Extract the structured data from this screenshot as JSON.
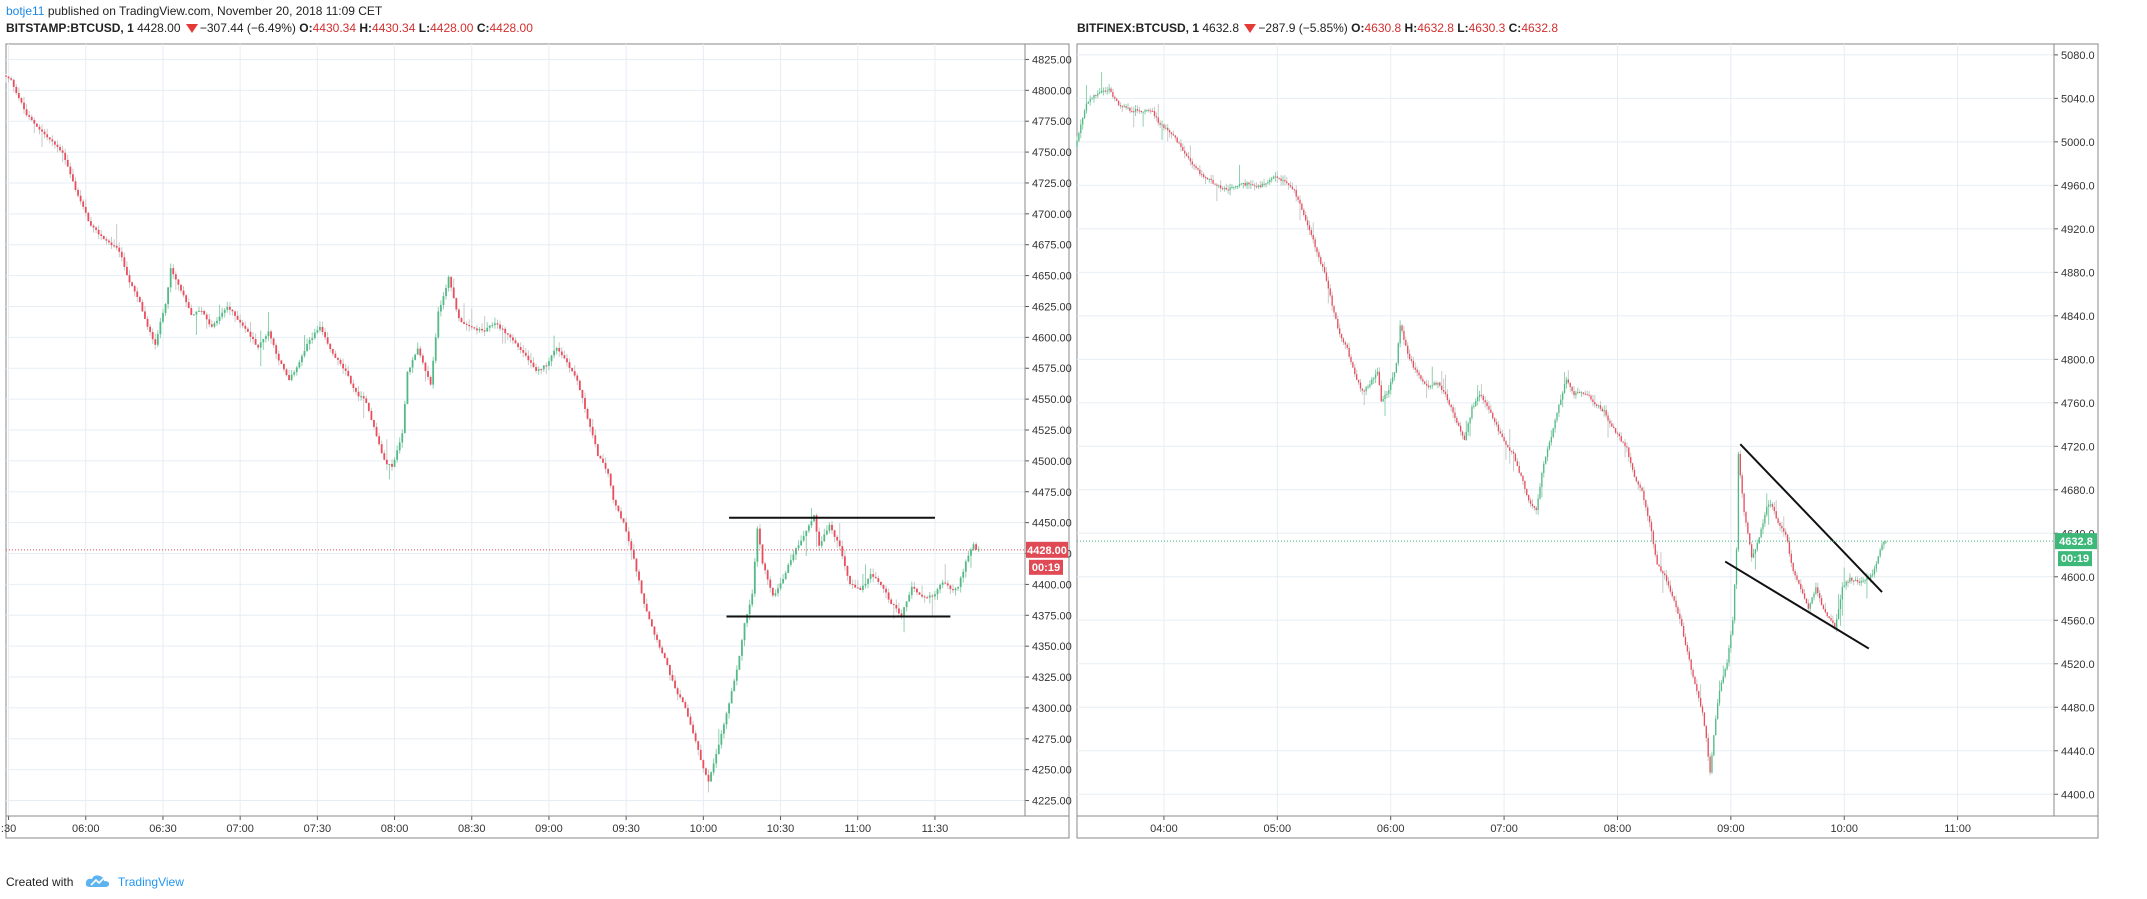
{
  "publish": {
    "author": "botje11",
    "text": "published on TradingView.com, November 20, 2018 11:09 CET"
  },
  "footer": {
    "created_with": "Created with",
    "brand": "TradingView"
  },
  "chart_data": [
    {
      "type": "candlestick",
      "legend": {
        "symbol": "BITSTAMP:BTCUSD, 1",
        "last": "4428.00",
        "change": "−307.44 (−6.49%)",
        "o": "4430.34",
        "h": "4430.34",
        "l": "4428.00",
        "c": "4428.00"
      },
      "ylim": [
        4212.5,
        4837.5
      ],
      "yticks": [
        "4825.00",
        "4800.00",
        "4775.00",
        "4750.00",
        "4725.00",
        "4700.00",
        "4675.00",
        "4650.00",
        "4625.00",
        "4600.00",
        "4575.00",
        "4550.00",
        "4525.00",
        "4500.00",
        "4475.00",
        "4450.00",
        "4425.00",
        "4400.00",
        "4375.00",
        "4350.00",
        "4325.00",
        "4300.00",
        "4275.00",
        "4250.00",
        "4225.00"
      ],
      "xticks": [
        ":30",
        "06:00",
        "06:30",
        "07:00",
        "07:30",
        "08:00",
        "08:30",
        "09:00",
        "09:30",
        "10:00",
        "10:30",
        "11:00",
        "11:30"
      ],
      "x_minutes": [
        -30,
        0,
        30,
        60,
        90,
        120,
        150,
        180,
        210,
        240,
        270,
        300,
        330
      ],
      "xlim_minutes": [
        -31,
        365
      ],
      "last_price": {
        "value": 4428.0,
        "label": "4428.00",
        "countdown": "00:19",
        "color": "#e04a55"
      },
      "path": [
        [
          -31,
          4812
        ],
        [
          -28,
          4808
        ],
        [
          -22,
          4780
        ],
        [
          -14,
          4762
        ],
        [
          -8,
          4750
        ],
        [
          -3,
          4720
        ],
        [
          3,
          4690
        ],
        [
          8,
          4680
        ],
        [
          14,
          4670
        ],
        [
          18,
          4645
        ],
        [
          22,
          4628
        ],
        [
          25,
          4608
        ],
        [
          28,
          4595
        ],
        [
          32,
          4628
        ],
        [
          34,
          4655
        ],
        [
          38,
          4638
        ],
        [
          42,
          4618
        ],
        [
          46,
          4622
        ],
        [
          50,
          4608
        ],
        [
          56,
          4625
        ],
        [
          62,
          4610
        ],
        [
          68,
          4592
        ],
        [
          72,
          4605
        ],
        [
          76,
          4582
        ],
        [
          80,
          4565
        ],
        [
          84,
          4580
        ],
        [
          88,
          4598
        ],
        [
          92,
          4608
        ],
        [
          96,
          4590
        ],
        [
          102,
          4572
        ],
        [
          106,
          4555
        ],
        [
          110,
          4548
        ],
        [
          114,
          4520
        ],
        [
          117,
          4500
        ],
        [
          120,
          4495
        ],
        [
          124,
          4522
        ],
        [
          126,
          4572
        ],
        [
          130,
          4590
        ],
        [
          135,
          4562
        ],
        [
          138,
          4620
        ],
        [
          142,
          4648
        ],
        [
          146,
          4615
        ],
        [
          150,
          4608
        ],
        [
          156,
          4605
        ],
        [
          160,
          4612
        ],
        [
          166,
          4600
        ],
        [
          172,
          4585
        ],
        [
          176,
          4572
        ],
        [
          180,
          4578
        ],
        [
          184,
          4592
        ],
        [
          188,
          4580
        ],
        [
          192,
          4565
        ],
        [
          196,
          4535
        ],
        [
          200,
          4505
        ],
        [
          204,
          4490
        ],
        [
          206,
          4468
        ],
        [
          210,
          4450
        ],
        [
          214,
          4420
        ],
        [
          218,
          4385
        ],
        [
          222,
          4360
        ],
        [
          226,
          4340
        ],
        [
          230,
          4315
        ],
        [
          234,
          4300
        ],
        [
          237,
          4280
        ],
        [
          240,
          4258
        ],
        [
          243,
          4240
        ],
        [
          246,
          4262
        ],
        [
          250,
          4295
        ],
        [
          254,
          4330
        ],
        [
          257,
          4368
        ],
        [
          260,
          4392
        ],
        [
          262,
          4445
        ],
        [
          264,
          4418
        ],
        [
          268,
          4390
        ],
        [
          272,
          4405
        ],
        [
          276,
          4425
        ],
        [
          280,
          4440
        ],
        [
          284,
          4455
        ],
        [
          286,
          4432
        ],
        [
          290,
          4448
        ],
        [
          294,
          4430
        ],
        [
          298,
          4400
        ],
        [
          302,
          4395
        ],
        [
          306,
          4408
        ],
        [
          310,
          4400
        ],
        [
          314,
          4385
        ],
        [
          318,
          4375
        ],
        [
          322,
          4398
        ],
        [
          326,
          4390
        ],
        [
          330,
          4390
        ],
        [
          334,
          4402
        ],
        [
          338,
          4395
        ],
        [
          340,
          4398
        ],
        [
          343,
          4418
        ],
        [
          346,
          4432
        ],
        [
          347,
          4428
        ]
      ],
      "annotation_lines": [
        {
          "x1": 250,
          "y1": 4454,
          "x2": 330,
          "y2": 4454
        },
        {
          "x1": 249,
          "y1": 4374,
          "x2": 336,
          "y2": 4374
        }
      ]
    },
    {
      "type": "candlestick",
      "legend": {
        "symbol": "BITFINEX:BTCUSD, 1",
        "last": "4632.8",
        "change": "−287.9 (−5.85%)",
        "o": "4630.8",
        "h": "4632.8",
        "l": "4630.3",
        "c": "4632.8"
      },
      "ylim": [
        4380,
        5090
      ],
      "yticks": [
        "5080.0",
        "5040.0",
        "5000.0",
        "4960.0",
        "4920.0",
        "4880.0",
        "4840.0",
        "4800.0",
        "4760.0",
        "4720.0",
        "4680.0",
        "4640.0",
        "4600.0",
        "4560.0",
        "4520.0",
        "4480.0",
        "4440.0",
        "4400.0"
      ],
      "xticks": [
        "04:00",
        "05:00",
        "06:00",
        "07:00",
        "08:00",
        "09:00",
        "10:00",
        "11:00"
      ],
      "x_minutes": [
        240,
        300,
        360,
        420,
        480,
        540,
        600,
        660
      ],
      "xlim_minutes": [
        194,
        711
      ],
      "last_price": {
        "value": 4632.8,
        "label": "4632.8",
        "countdown": "00:19",
        "color": "#3cb878"
      },
      "path": [
        [
          194,
          4995
        ],
        [
          200,
          5035
        ],
        [
          206,
          5045
        ],
        [
          212,
          5048
        ],
        [
          217,
          5035
        ],
        [
          222,
          5030
        ],
        [
          228,
          5028
        ],
        [
          234,
          5030
        ],
        [
          238,
          5018
        ],
        [
          244,
          5010
        ],
        [
          250,
          4995
        ],
        [
          256,
          4978
        ],
        [
          262,
          4968
        ],
        [
          268,
          4962
        ],
        [
          274,
          4955
        ],
        [
          280,
          4960
        ],
        [
          286,
          4962
        ],
        [
          290,
          4958
        ],
        [
          296,
          4962
        ],
        [
          300,
          4968
        ],
        [
          306,
          4962
        ],
        [
          310,
          4955
        ],
        [
          314,
          4938
        ],
        [
          318,
          4920
        ],
        [
          322,
          4898
        ],
        [
          326,
          4880
        ],
        [
          330,
          4850
        ],
        [
          334,
          4822
        ],
        [
          338,
          4810
        ],
        [
          342,
          4785
        ],
        [
          346,
          4770
        ],
        [
          350,
          4778
        ],
        [
          354,
          4790
        ],
        [
          356,
          4760
        ],
        [
          360,
          4772
        ],
        [
          364,
          4795
        ],
        [
          366,
          4832
        ],
        [
          370,
          4805
        ],
        [
          374,
          4790
        ],
        [
          380,
          4775
        ],
        [
          386,
          4778
        ],
        [
          390,
          4768
        ],
        [
          396,
          4742
        ],
        [
          400,
          4725
        ],
        [
          404,
          4755
        ],
        [
          408,
          4768
        ],
        [
          414,
          4750
        ],
        [
          418,
          4735
        ],
        [
          422,
          4720
        ],
        [
          426,
          4712
        ],
        [
          430,
          4692
        ],
        [
          434,
          4670
        ],
        [
          438,
          4662
        ],
        [
          442,
          4705
        ],
        [
          446,
          4728
        ],
        [
          450,
          4758
        ],
        [
          454,
          4782
        ],
        [
          458,
          4768
        ],
        [
          462,
          4770
        ],
        [
          466,
          4765
        ],
        [
          470,
          4758
        ],
        [
          474,
          4752
        ],
        [
          478,
          4738
        ],
        [
          482,
          4728
        ],
        [
          486,
          4718
        ],
        [
          490,
          4692
        ],
        [
          494,
          4678
        ],
        [
          498,
          4650
        ],
        [
          502,
          4612
        ],
        [
          506,
          4600
        ],
        [
          510,
          4582
        ],
        [
          514,
          4562
        ],
        [
          518,
          4530
        ],
        [
          522,
          4500
        ],
        [
          526,
          4475
        ],
        [
          528,
          4452
        ],
        [
          530,
          4420
        ],
        [
          533,
          4470
        ],
        [
          535,
          4495
        ],
        [
          539,
          4520
        ],
        [
          542,
          4560
        ],
        [
          544,
          4625
        ],
        [
          545,
          4712
        ],
        [
          548,
          4660
        ],
        [
          552,
          4618
        ],
        [
          556,
          4635
        ],
        [
          560,
          4665
        ],
        [
          562,
          4668
        ],
        [
          566,
          4650
        ],
        [
          570,
          4640
        ],
        [
          574,
          4605
        ],
        [
          578,
          4590
        ],
        [
          582,
          4572
        ],
        [
          586,
          4590
        ],
        [
          590,
          4570
        ],
        [
          594,
          4560
        ],
        [
          596,
          4552
        ],
        [
          600,
          4590
        ],
        [
          604,
          4598
        ],
        [
          608,
          4595
        ],
        [
          612,
          4598
        ],
        [
          616,
          4602
        ],
        [
          620,
          4625
        ],
        [
          622,
          4633
        ]
      ],
      "annotation_lines": [
        {
          "x1": 545,
          "y1": 4722,
          "x2": 620,
          "y2": 4586
        },
        {
          "x1": 537,
          "y1": 4614,
          "x2": 613,
          "y2": 4534
        }
      ]
    }
  ]
}
